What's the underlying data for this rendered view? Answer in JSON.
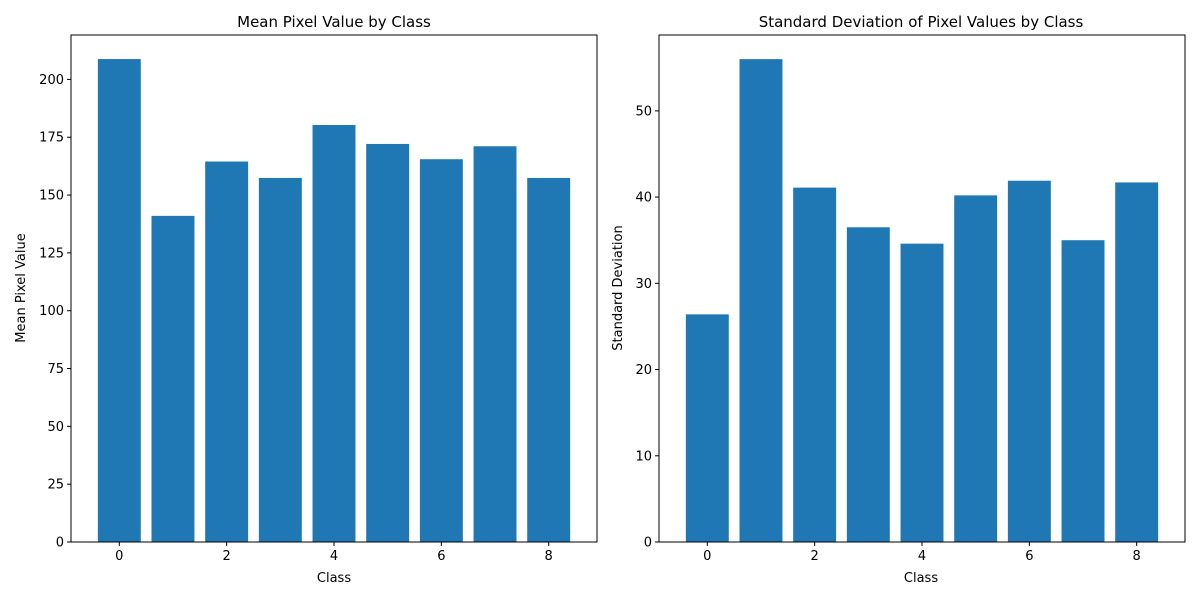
{
  "chart_data": [
    {
      "type": "bar",
      "title": "Mean Pixel Value by Class",
      "xlabel": "Class",
      "ylabel": "Mean Pixel Value",
      "categories": [
        0,
        1,
        2,
        3,
        4,
        5,
        6,
        7,
        8
      ],
      "values": [
        208.8,
        141.0,
        164.5,
        157.4,
        180.3,
        172.1,
        165.5,
        171.1,
        157.4
      ],
      "xticks": [
        0,
        2,
        4,
        6,
        8
      ],
      "xlim": [
        -0.9,
        8.9
      ],
      "yticks": [
        0,
        25,
        50,
        75,
        100,
        125,
        150,
        175,
        200
      ],
      "ylim": [
        0,
        219.2
      ],
      "color": "#1f77b4",
      "grid": false
    },
    {
      "type": "bar",
      "title": "Standard Deviation of Pixel Values by Class",
      "xlabel": "Class",
      "ylabel": "Standard Deviation",
      "categories": [
        0,
        1,
        2,
        3,
        4,
        5,
        6,
        7,
        8
      ],
      "values": [
        26.4,
        56.0,
        41.1,
        36.5,
        34.6,
        40.2,
        41.9,
        35.0,
        41.7
      ],
      "xticks": [
        0,
        2,
        4,
        6,
        8
      ],
      "xlim": [
        -0.9,
        8.9
      ],
      "yticks": [
        0,
        10,
        20,
        30,
        40,
        50
      ],
      "ylim": [
        0,
        58.8
      ],
      "color": "#1f77b4",
      "grid": false
    }
  ]
}
